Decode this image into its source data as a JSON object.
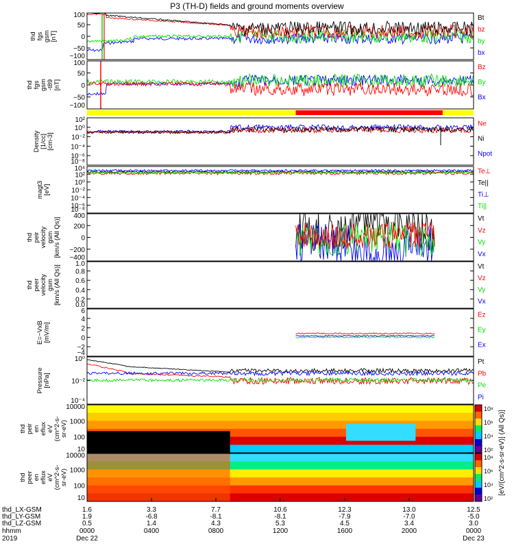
{
  "title": "P3 (TH-D) fields and ground moments overview",
  "colors": {
    "black": "#000000",
    "red": "#ff0000",
    "green": "#00dd00",
    "blue": "#0000ff",
    "yellow": "#ffff00"
  },
  "x_axis": {
    "rows": [
      {
        "label": "thd_LX-GSM",
        "values": [
          "1.6",
          "3.3",
          "7.7",
          "10.6",
          "12.3",
          "13.0",
          "12.5"
        ]
      },
      {
        "label": "thd_LY-GSM",
        "values": [
          "1.9",
          "-6.8",
          "-8.1",
          "-8.1",
          "-7.9",
          "-7.0",
          "-5.0"
        ]
      },
      {
        "label": "thd_LZ-GSM",
        "values": [
          "0.5",
          "1.4",
          "4.3",
          "5.3",
          "4.5",
          "3.4",
          "3.0"
        ]
      },
      {
        "label": "hhmm",
        "values": [
          "0000",
          "0400",
          "0800",
          "1200",
          "1600",
          "2000",
          "0000"
        ]
      },
      {
        "label": "2019",
        "values": [
          "Dec 22",
          "",
          "",
          "",
          "",
          "",
          "Dec 23"
        ]
      }
    ]
  },
  "chart_data": [
    {
      "type": "line",
      "ylabel": [
        "thd",
        "fgs",
        "gsm",
        "[nT]"
      ],
      "yticks": [
        "100",
        "50",
        "0",
        "−50",
        "−100"
      ],
      "legend": [
        {
          "name": "Bt",
          "color": "#000000"
        },
        {
          "name": "bz",
          "color": "#ff0000"
        },
        {
          "name": "by",
          "color": "#00dd00"
        },
        {
          "name": "bx",
          "color": "#0000ff"
        }
      ]
    },
    {
      "type": "line",
      "ylabel": [
        "thd",
        "fgs",
        "gsm",
        "-t89",
        "[nT]"
      ],
      "yticks": [
        "100",
        "50",
        "0",
        "−50",
        "−100"
      ],
      "legend": [
        {
          "name": "Bz",
          "color": "#ff0000"
        },
        {
          "name": "By",
          "color": "#00dd00"
        },
        {
          "name": "Bx",
          "color": "#0000ff"
        }
      ]
    },
    {
      "type": "line",
      "ylabel": [
        "Density",
        "[1/cc]",
        "[cm-3]"
      ],
      "yticks": [
        "10²",
        "10⁰",
        "10⁻²",
        "10⁻⁴",
        "10⁻⁶",
        "10⁻⁸"
      ],
      "legend": [
        {
          "name": "Ne",
          "color": "#ff0000"
        },
        {
          "name": "Ni",
          "color": "#000000"
        },
        {
          "name": "Npot",
          "color": "#0000ff"
        }
      ]
    },
    {
      "type": "line",
      "ylabel": [
        "magt3",
        "[eV]"
      ],
      "yticks": [
        "10⁴",
        "10²",
        "10⁰",
        "10⁻²",
        "10⁻⁴",
        "10⁻⁶",
        "10⁻⁸"
      ],
      "legend": [
        {
          "name": "Te⊥",
          "color": "#ff0000"
        },
        {
          "name": "Te||",
          "color": "#000000"
        },
        {
          "name": "Ti⊥",
          "color": "#0000ff"
        },
        {
          "name": "Ti||",
          "color": "#00dd00"
        }
      ]
    },
    {
      "type": "line",
      "ylabel": [
        "thd",
        "peir",
        "velocity",
        "gsm",
        "[km/s (All Qs)]"
      ],
      "yticks": [
        "400",
        "200",
        "0",
        "−200",
        "−400"
      ],
      "legend": [
        {
          "name": "Vt",
          "color": "#000000"
        },
        {
          "name": "Vz",
          "color": "#ff0000"
        },
        {
          "name": "Vy",
          "color": "#00dd00"
        },
        {
          "name": "Vx",
          "color": "#0000ff"
        }
      ]
    },
    {
      "type": "line",
      "ylabel": [
        "thd",
        "peer",
        "velocity",
        "gsm",
        "[km/s (All Qs)]"
      ],
      "yticks": [
        "1.0",
        "0.8",
        "0.6",
        "0.4",
        "0.2",
        "0.0"
      ],
      "legend": [
        {
          "name": "Vt",
          "color": "#000000"
        },
        {
          "name": "Vz",
          "color": "#ff0000"
        },
        {
          "name": "Vy",
          "color": "#00dd00"
        },
        {
          "name": "Vx",
          "color": "#0000ff"
        }
      ]
    },
    {
      "type": "line",
      "ylabel": [
        "E=−VxB",
        "[mV/m]"
      ],
      "yticks": [
        "6",
        "4",
        "2",
        "0",
        "−2",
        "−4"
      ],
      "legend": [
        {
          "name": "Ez",
          "color": "#ff0000"
        },
        {
          "name": "Ey",
          "color": "#00dd00"
        },
        {
          "name": "Ex",
          "color": "#0000ff"
        }
      ]
    },
    {
      "type": "line",
      "ylabel": [
        "Pressure",
        "[nPa]"
      ],
      "yticks": [
        "10⁰",
        "10⁻²",
        "10⁻⁴"
      ],
      "legend": [
        {
          "name": "Pt",
          "color": "#000000"
        },
        {
          "name": "Pb",
          "color": "#ff0000"
        },
        {
          "name": "Pe",
          "color": "#00dd00"
        },
        {
          "name": "Pi",
          "color": "#0000ff"
        }
      ]
    },
    {
      "type": "heatmap",
      "ylabel": [
        "thd",
        "peir",
        "en",
        "eflux",
        "eV",
        "(cm^2-s-",
        "sr-eV)"
      ],
      "yticks": [
        "10000",
        "1000",
        "100",
        "10"
      ]
    },
    {
      "type": "heatmap",
      "ylabel": [
        "thd",
        "peer",
        "en",
        "eflux",
        "eV",
        "(cm^2-s-",
        "sr-eV)"
      ],
      "yticks": [
        "10000",
        "1000",
        "100",
        "10"
      ]
    }
  ],
  "colorbar": {
    "label": "[eV/(cm^2-s-sr-eV)] (All Qs)]",
    "ticks_top": [
      "10⁸",
      "10⁶",
      "10⁴",
      "10²"
    ],
    "ticks_bottom": [
      "10⁸",
      "10⁶",
      "10⁴",
      "10²"
    ]
  }
}
